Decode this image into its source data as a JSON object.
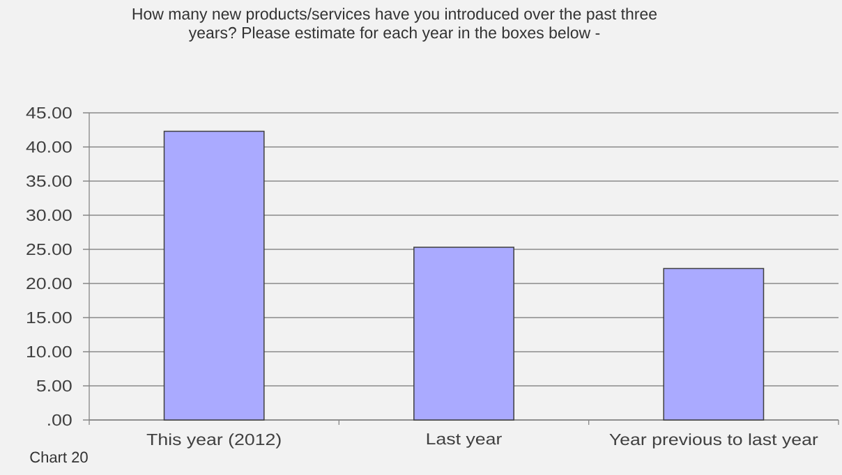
{
  "chart_data": {
    "type": "bar",
    "title": "How many new products/services have you introduced over the past three years? Please estimate for each year in the boxes below -",
    "categories": [
      "This year (2012)",
      "Last year",
      "Year previous to last year"
    ],
    "values": [
      42.3,
      25.3,
      22.2
    ],
    "color": "#aaaaff",
    "ylim": [
      0,
      45
    ],
    "yticks": [
      {
        "value": 0,
        "label": ".00"
      },
      {
        "value": 5,
        "label": "5.00"
      },
      {
        "value": 10,
        "label": "10.00"
      },
      {
        "value": 15,
        "label": "15.00"
      },
      {
        "value": 20,
        "label": "20.00"
      },
      {
        "value": 25,
        "label": "25.00"
      },
      {
        "value": 30,
        "label": "30.00"
      },
      {
        "value": 35,
        "label": "35.00"
      },
      {
        "value": 40,
        "label": "40.00"
      },
      {
        "value": 45,
        "label": "45.00"
      }
    ],
    "grid": "y",
    "annotations": [
      "Chart 20"
    ]
  }
}
